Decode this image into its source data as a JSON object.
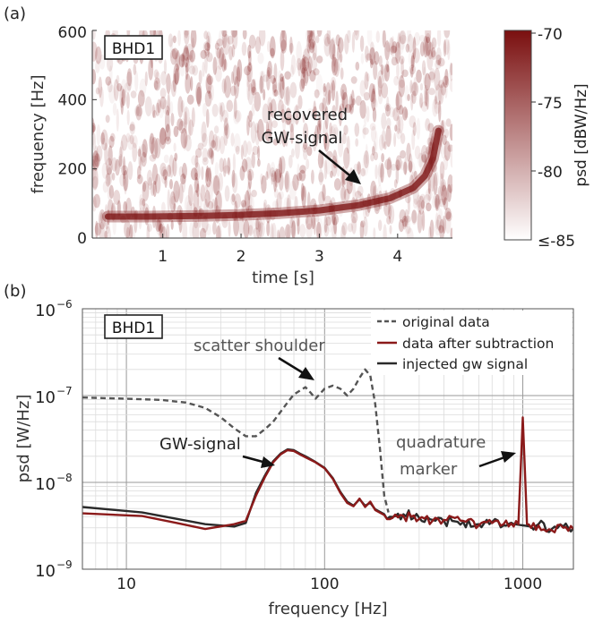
{
  "chart_data": [
    {
      "panel": "(a)",
      "type": "heatmap",
      "title": "",
      "tag": "BHD1",
      "xlabel": "time [s]",
      "ylabel": "frequency [Hz]",
      "xlim": [
        0.1,
        4.7
      ],
      "ylim": [
        0,
        600
      ],
      "xticks": [
        1,
        2,
        3,
        4
      ],
      "yticks": [
        0,
        200,
        400,
        600
      ],
      "colorbar": {
        "label": "psd [dBW/Hz]",
        "range": [
          -85,
          -70
        ],
        "ticks": [
          -70,
          -75,
          -80
        ],
        "min_label": "≤-85",
        "colors": [
          "#ffffff",
          "#7a0f0f"
        ]
      },
      "annotation": {
        "lines": [
          "recovered",
          "GW-signal"
        ],
        "target": {
          "t": 3.6,
          "f": 110
        }
      },
      "chirp_track": {
        "t": [
          0.3,
          0.8,
          1.5,
          2.0,
          2.5,
          3.0,
          3.5,
          3.9,
          4.2,
          4.35,
          4.45,
          4.52
        ],
        "f": [
          62,
          62,
          64,
          67,
          72,
          80,
          95,
          115,
          145,
          180,
          230,
          310
        ]
      }
    },
    {
      "panel": "(b)",
      "type": "line",
      "title": "",
      "tag": "BHD1",
      "xlabel": "frequency [Hz]",
      "ylabel": "psd [W/Hz]",
      "xscale": "log",
      "yscale": "log",
      "xlim": [
        6,
        1800
      ],
      "ylim": [
        1e-09,
        1e-06
      ],
      "xtick_labels": [
        "10",
        "100",
        "1000"
      ],
      "ytick_labels": [
        {
          "base": "10",
          "exp": "−6"
        },
        {
          "base": "10",
          "exp": "−7"
        },
        {
          "base": "10",
          "exp": "−8"
        },
        {
          "base": "10",
          "exp": "−9"
        }
      ],
      "grid": true,
      "legend_position": "top-right",
      "annotations": [
        {
          "lines": [
            "scatter shoulder"
          ],
          "target": {
            "x": 95,
            "y": 1.1e-07
          }
        },
        {
          "lines": [
            "GW-signal"
          ],
          "target": {
            "x": 55,
            "y": 1.5e-08
          }
        },
        {
          "lines": [
            "quadrature",
            "marker"
          ],
          "target": {
            "x": 1000,
            "y": 2.5e-08
          }
        }
      ],
      "series": [
        {
          "name": "original data",
          "color": "#555555",
          "dash": "dashed",
          "x": [
            6,
            10,
            15,
            20,
            25,
            30,
            35,
            40,
            45,
            50,
            55,
            60,
            65,
            70,
            80,
            85,
            90,
            100,
            110,
            120,
            130,
            140,
            150,
            160,
            170,
            180,
            190,
            200,
            210
          ],
          "y": [
            9.5e-08,
            9.2e-08,
            8.9e-08,
            8.3e-08,
            7.2e-08,
            5.6e-08,
            4.2e-08,
            3.4e-08,
            3.4e-08,
            4.1e-08,
            5e-08,
            6.5e-08,
            8.3e-08,
            1.03e-07,
            1.25e-07,
            1.08e-07,
            9.2e-08,
            1.2e-07,
            1.3e-07,
            1.2e-07,
            1e-07,
            1.2e-07,
            1.6e-07,
            2e-07,
            1.7e-07,
            8e-08,
            2.5e-08,
            7e-09,
            4.5e-09
          ]
        },
        {
          "name": "data after subtraction",
          "color": "#8b1a1a",
          "dash": "solid",
          "x": [
            6,
            12,
            18,
            25,
            35,
            40,
            45,
            50,
            55,
            60,
            65,
            70,
            75,
            80,
            90,
            100,
            110,
            120,
            130,
            140,
            150,
            160,
            170,
            180,
            200,
            220,
            250,
            300,
            350,
            400,
            500,
            600,
            700,
            800,
            900,
            950,
            1000,
            1050,
            1100,
            1200,
            1400,
            1600,
            1800
          ],
          "y": [
            4.4e-09,
            4.1e-09,
            3.4e-09,
            2.9e-09,
            3.3e-09,
            3.6e-09,
            7e-09,
            1.15e-08,
            1.7e-08,
            2.1e-08,
            2.35e-08,
            2.3e-08,
            2.1e-08,
            1.95e-08,
            1.7e-08,
            1.45e-08,
            1.1e-08,
            7.6e-09,
            5.8e-09,
            5.3e-09,
            6.5e-09,
            5.2e-09,
            6e-09,
            4.8e-09,
            4.2e-09,
            3.9e-09,
            4.1e-09,
            3.8e-09,
            3.6e-09,
            3.7e-09,
            3.6e-09,
            3.2e-09,
            3.4e-09,
            3.3e-09,
            3.1e-09,
            3.3e-09,
            5.6e-08,
            3.3e-09,
            3e-09,
            3.2e-09,
            2.8e-09,
            3e-09,
            2.9e-09
          ]
        },
        {
          "name": "injected gw signal",
          "color": "#2a2a2a",
          "dash": "solid",
          "x": [
            6,
            12,
            18,
            25,
            35,
            40,
            45,
            50,
            55,
            60,
            65,
            70,
            75,
            80,
            90,
            100,
            110,
            120,
            130,
            140,
            150,
            160,
            170,
            180,
            200,
            220,
            250,
            300,
            350,
            400,
            500,
            600,
            700,
            800,
            900,
            1000,
            1100,
            1200,
            1400,
            1600,
            1800
          ],
          "y": [
            5.2e-09,
            4.5e-09,
            3.8e-09,
            3.3e-09,
            3.1e-09,
            3.4e-09,
            7.5e-09,
            1.2e-08,
            1.75e-08,
            2.15e-08,
            2.4e-08,
            2.35e-08,
            2.15e-08,
            2e-08,
            1.72e-08,
            1.47e-08,
            1.12e-08,
            7.8e-09,
            6e-09,
            5.4e-09,
            6.4e-09,
            5.4e-09,
            5.8e-09,
            4.9e-09,
            4.3e-09,
            4e-09,
            4.3e-09,
            3.9e-09,
            3.7e-09,
            3.6e-09,
            3.5e-09,
            3.3e-09,
            3.5e-09,
            3.2e-09,
            3.3e-09,
            3.2e-09,
            3.1e-09,
            3.3e-09,
            2.9e-09,
            3.1e-09,
            3e-09
          ]
        }
      ]
    }
  ]
}
